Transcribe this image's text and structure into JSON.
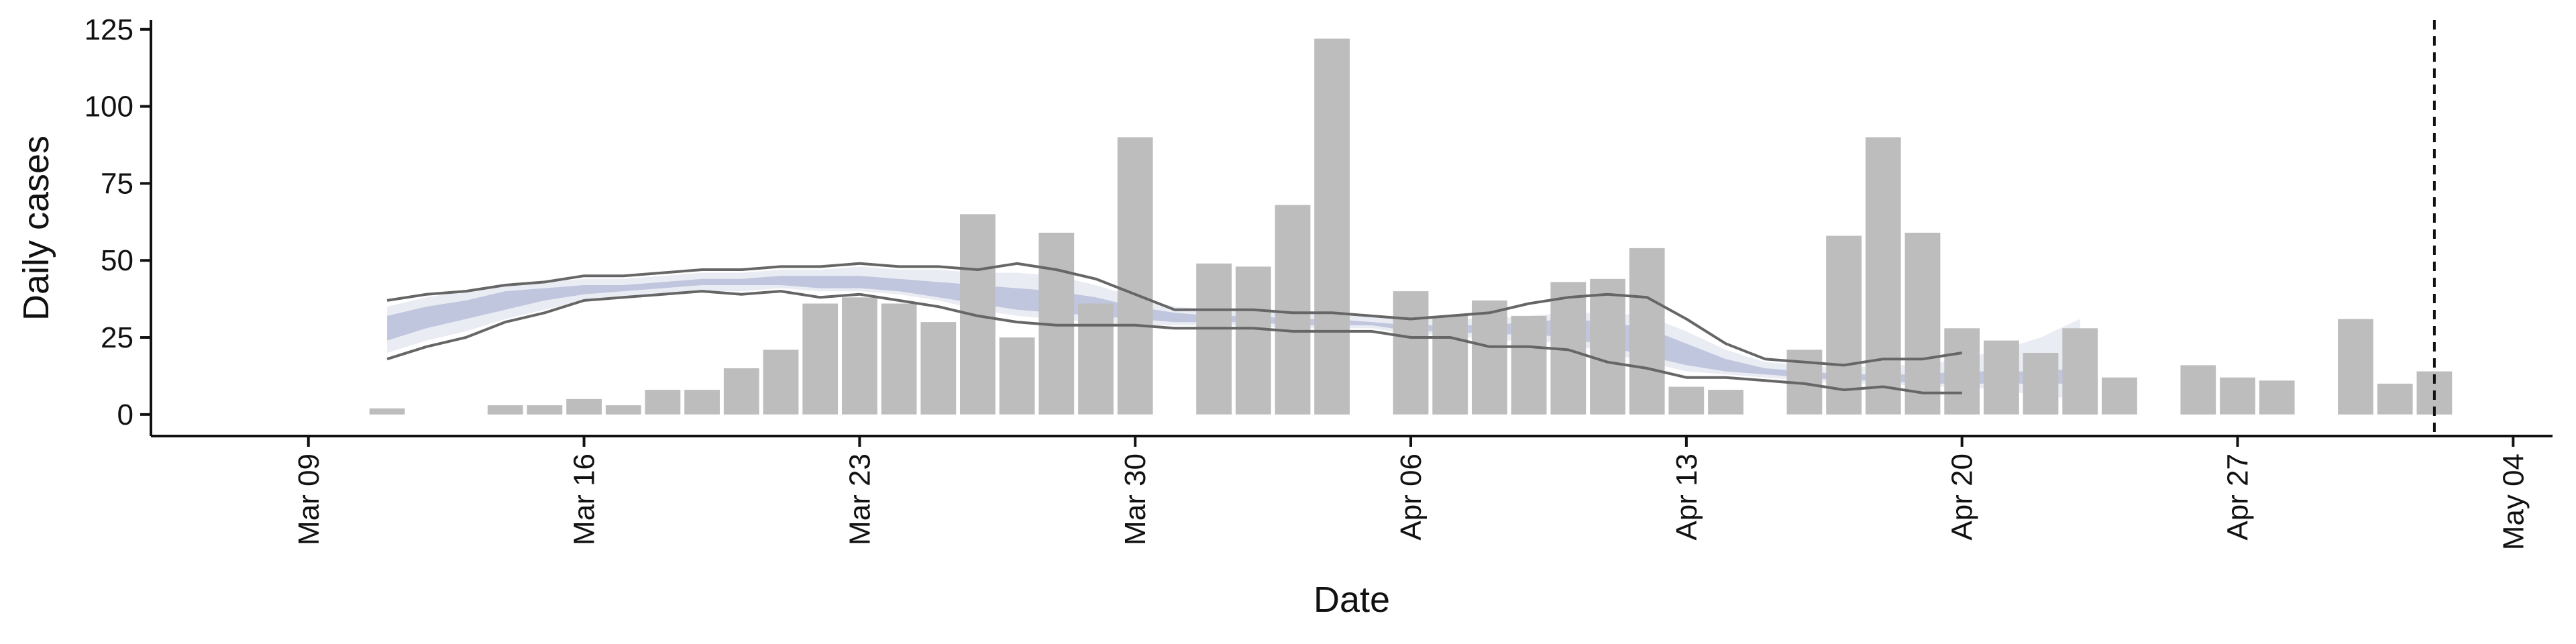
{
  "chart_data": {
    "type": "bar",
    "xlabel": "Date",
    "ylabel": "Daily cases",
    "ylim": [
      -7,
      128
    ],
    "xlim": [
      "2020-03-05",
      "2020-05-05"
    ],
    "grid": false,
    "legend": "none",
    "x_ticks": [
      {
        "date": "2020-03-09",
        "label": "Mar 09"
      },
      {
        "date": "2020-03-16",
        "label": "Mar 16"
      },
      {
        "date": "2020-03-23",
        "label": "Mar 23"
      },
      {
        "date": "2020-03-30",
        "label": "Mar 30"
      },
      {
        "date": "2020-04-06",
        "label": "Apr 06"
      },
      {
        "date": "2020-04-13",
        "label": "Apr 13"
      },
      {
        "date": "2020-04-20",
        "label": "Apr 20"
      },
      {
        "date": "2020-04-27",
        "label": "Apr 27"
      },
      {
        "date": "2020-05-04",
        "label": "May 04"
      }
    ],
    "y_ticks": [
      0,
      25,
      50,
      75,
      100,
      125
    ],
    "bars": {
      "name": "Daily cases",
      "color": "#bdbdbd",
      "x": [
        "2020-03-11",
        "2020-03-13",
        "2020-03-14",
        "2020-03-15",
        "2020-03-16",
        "2020-03-17",
        "2020-03-18",
        "2020-03-19",
        "2020-03-20",
        "2020-03-21",
        "2020-03-22",
        "2020-03-23",
        "2020-03-24",
        "2020-03-25",
        "2020-03-26",
        "2020-03-27",
        "2020-03-28",
        "2020-03-29",
        "2020-03-30",
        "2020-03-31",
        "2020-04-01",
        "2020-04-02",
        "2020-04-03",
        "2020-04-04",
        "2020-04-05",
        "2020-04-06",
        "2020-04-07",
        "2020-04-08",
        "2020-04-09",
        "2020-04-10",
        "2020-04-11",
        "2020-04-12",
        "2020-04-13",
        "2020-04-14",
        "2020-04-15",
        "2020-04-16",
        "2020-04-17",
        "2020-04-18",
        "2020-04-19",
        "2020-04-20",
        "2020-04-21",
        "2020-04-22",
        "2020-04-23",
        "2020-04-24",
        "2020-04-25",
        "2020-04-26",
        "2020-04-27",
        "2020-04-28",
        "2020-04-29",
        "2020-04-30",
        "2020-05-01",
        "2020-05-02"
      ],
      "values": [
        2,
        0,
        3,
        3,
        5,
        3,
        8,
        8,
        15,
        21,
        36,
        38,
        36,
        30,
        65,
        25,
        59,
        36,
        90,
        0,
        49,
        48,
        68,
        122,
        0,
        40,
        32,
        37,
        32,
        43,
        44,
        54,
        9,
        8,
        0,
        21,
        58,
        90,
        59,
        28,
        24,
        20,
        28,
        12,
        0,
        16,
        12,
        11,
        0,
        31,
        10,
        14
      ]
    },
    "series": [
      {
        "role": "upper_bound",
        "color": "#666666",
        "x": [
          "2020-03-11",
          "2020-03-12",
          "2020-03-13",
          "2020-03-14",
          "2020-03-15",
          "2020-03-16",
          "2020-03-17",
          "2020-03-18",
          "2020-03-19",
          "2020-03-20",
          "2020-03-21",
          "2020-03-22",
          "2020-03-23",
          "2020-03-24",
          "2020-03-25",
          "2020-03-26",
          "2020-03-27",
          "2020-03-28",
          "2020-03-29",
          "2020-03-30",
          "2020-03-31",
          "2020-04-01",
          "2020-04-02",
          "2020-04-03",
          "2020-04-04",
          "2020-04-05",
          "2020-04-06",
          "2020-04-07",
          "2020-04-08",
          "2020-04-09",
          "2020-04-10",
          "2020-04-11",
          "2020-04-12",
          "2020-04-13",
          "2020-04-14",
          "2020-04-15",
          "2020-04-16",
          "2020-04-17",
          "2020-04-18",
          "2020-04-19",
          "2020-04-20"
        ],
        "values": [
          37,
          39,
          40,
          42,
          43,
          45,
          45,
          46,
          47,
          47,
          48,
          48,
          49,
          48,
          48,
          47,
          49,
          47,
          44,
          39,
          34,
          34,
          34,
          33,
          33,
          32,
          31,
          32,
          33,
          36,
          38,
          39,
          38,
          31,
          23,
          18,
          17,
          16,
          18,
          18,
          20
        ]
      },
      {
        "role": "lower_bound",
        "color": "#666666",
        "x": [
          "2020-03-11",
          "2020-03-12",
          "2020-03-13",
          "2020-03-14",
          "2020-03-15",
          "2020-03-16",
          "2020-03-17",
          "2020-03-18",
          "2020-03-19",
          "2020-03-20",
          "2020-03-21",
          "2020-03-22",
          "2020-03-23",
          "2020-03-24",
          "2020-03-25",
          "2020-03-26",
          "2020-03-27",
          "2020-03-28",
          "2020-03-29",
          "2020-03-30",
          "2020-03-31",
          "2020-04-01",
          "2020-04-02",
          "2020-04-03",
          "2020-04-04",
          "2020-04-05",
          "2020-04-06",
          "2020-04-07",
          "2020-04-08",
          "2020-04-09",
          "2020-04-10",
          "2020-04-11",
          "2020-04-12",
          "2020-04-13",
          "2020-04-14",
          "2020-04-15",
          "2020-04-16",
          "2020-04-17",
          "2020-04-18",
          "2020-04-19",
          "2020-04-20"
        ],
        "values": [
          18,
          22,
          25,
          30,
          33,
          37,
          38,
          39,
          40,
          39,
          40,
          38,
          39,
          37,
          35,
          32,
          30,
          29,
          29,
          29,
          28,
          28,
          28,
          27,
          27,
          27,
          25,
          25,
          22,
          22,
          21,
          17,
          15,
          12,
          12,
          11,
          10,
          8,
          9,
          7,
          7
        ]
      }
    ],
    "bands": [
      {
        "role": "outer_interval",
        "color": "#e3e6f0",
        "x": [
          "2020-03-11",
          "2020-03-12",
          "2020-03-13",
          "2020-03-14",
          "2020-03-15",
          "2020-03-16",
          "2020-03-17",
          "2020-03-18",
          "2020-03-19",
          "2020-03-20",
          "2020-03-21",
          "2020-03-22",
          "2020-03-23",
          "2020-03-24",
          "2020-03-25",
          "2020-03-26",
          "2020-03-27",
          "2020-03-28",
          "2020-03-29",
          "2020-03-30",
          "2020-03-31",
          "2020-04-01",
          "2020-04-02",
          "2020-04-03",
          "2020-04-04",
          "2020-04-05",
          "2020-04-06",
          "2020-04-07",
          "2020-04-08",
          "2020-04-09",
          "2020-04-10",
          "2020-04-11",
          "2020-04-12",
          "2020-04-13",
          "2020-04-14",
          "2020-04-15",
          "2020-04-16",
          "2020-04-17",
          "2020-04-18",
          "2020-04-19",
          "2020-04-20",
          "2020-04-21",
          "2020-04-22",
          "2020-04-23"
        ],
        "upper": [
          35,
          38,
          40,
          42,
          43,
          44,
          44,
          45,
          46,
          46,
          47,
          47,
          48,
          47,
          47,
          46,
          46,
          45,
          42,
          38,
          35,
          34,
          34,
          33,
          33,
          32,
          31,
          31,
          31,
          32,
          33,
          33,
          32,
          27,
          21,
          17,
          16,
          15,
          16,
          16,
          18,
          21,
          25,
          31
        ],
        "lower": [
          20,
          24,
          27,
          31,
          34,
          37,
          38,
          39,
          40,
          40,
          41,
          40,
          40,
          39,
          37,
          34,
          32,
          31,
          30,
          29,
          29,
          29,
          29,
          28,
          28,
          28,
          26,
          26,
          24,
          24,
          23,
          20,
          17,
          14,
          13,
          12,
          11,
          10,
          10,
          9,
          9,
          8,
          6,
          5
        ]
      },
      {
        "role": "inner_interval",
        "color": "#b8c0d8",
        "x": [
          "2020-03-11",
          "2020-03-12",
          "2020-03-13",
          "2020-03-14",
          "2020-03-15",
          "2020-03-16",
          "2020-03-17",
          "2020-03-18",
          "2020-03-19",
          "2020-03-20",
          "2020-03-21",
          "2020-03-22",
          "2020-03-23",
          "2020-03-24",
          "2020-03-25",
          "2020-03-26",
          "2020-03-27",
          "2020-03-28",
          "2020-03-29",
          "2020-03-30",
          "2020-03-31",
          "2020-04-01",
          "2020-04-02",
          "2020-04-03",
          "2020-04-04",
          "2020-04-05",
          "2020-04-06",
          "2020-04-07",
          "2020-04-08",
          "2020-04-09",
          "2020-04-10",
          "2020-04-11",
          "2020-04-12",
          "2020-04-13",
          "2020-04-14",
          "2020-04-15",
          "2020-04-16",
          "2020-04-17",
          "2020-04-18",
          "2020-04-19",
          "2020-04-20",
          "2020-04-21",
          "2020-04-22",
          "2020-04-23"
        ],
        "upper": [
          32,
          35,
          37,
          40,
          41,
          42,
          42,
          43,
          44,
          44,
          45,
          45,
          45,
          44,
          43,
          42,
          41,
          40,
          38,
          35,
          33,
          32,
          32,
          31,
          31,
          30,
          29,
          29,
          29,
          30,
          31,
          30,
          28,
          23,
          18,
          15,
          14,
          13,
          13,
          13,
          14,
          14,
          14,
          15
        ],
        "lower": [
          24,
          28,
          31,
          34,
          37,
          39,
          40,
          41,
          42,
          42,
          42,
          41,
          41,
          40,
          38,
          36,
          34,
          33,
          32,
          31,
          30,
          30,
          30,
          29,
          29,
          29,
          27,
          27,
          26,
          26,
          25,
          22,
          19,
          16,
          14,
          13,
          12,
          11,
          11,
          10,
          10,
          10,
          10,
          10
        ]
      }
    ],
    "reference_line": {
      "x": "2020-05-02",
      "style": "dashed",
      "color": "#111111"
    }
  }
}
